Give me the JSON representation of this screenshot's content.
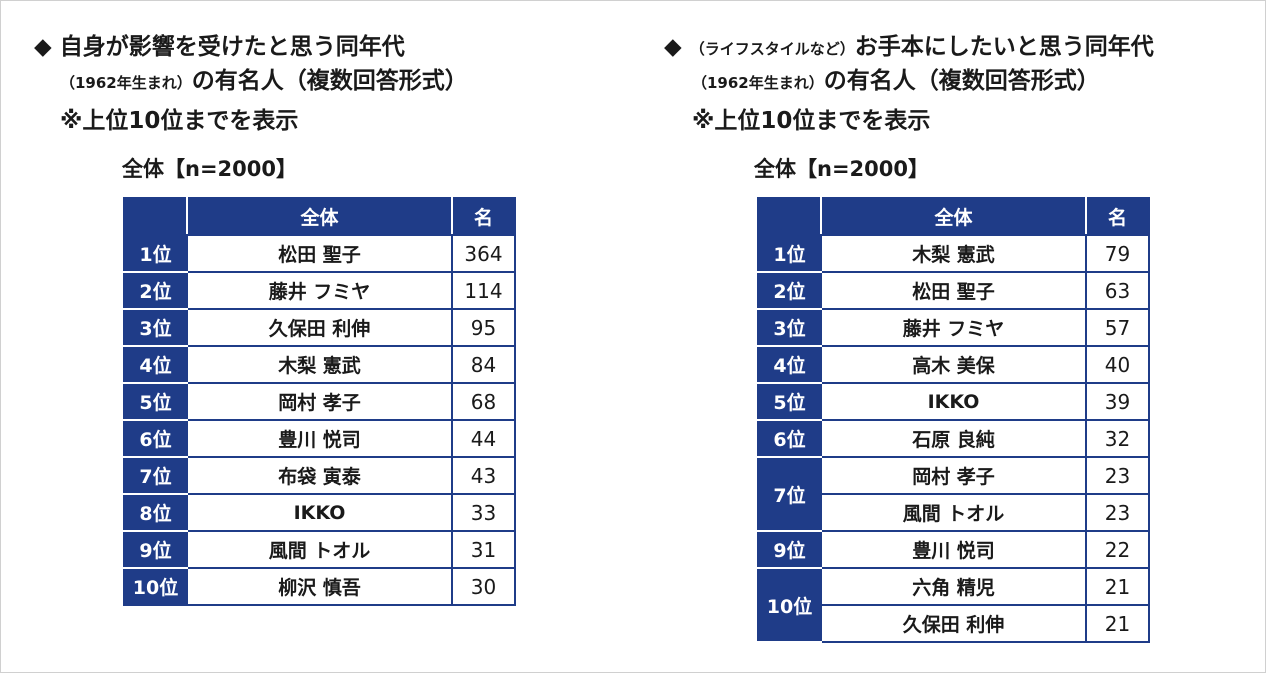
{
  "left": {
    "title_line1": "◆ 自身が影響を受けたと思う同年代",
    "title_line2_small": "（1962年生まれ）",
    "title_line2_rest": "の有名人（複数回答形式）",
    "note": "※上位10位までを表示",
    "total_label": "全体【n=2000】",
    "header": {
      "rank": "",
      "name": "全体",
      "count": "名"
    },
    "rows": [
      {
        "rank": "1位",
        "name": "松田 聖子",
        "count": "364"
      },
      {
        "rank": "2位",
        "name": "藤井 フミヤ",
        "count": "114"
      },
      {
        "rank": "3位",
        "name": "久保田 利伸",
        "count": "95"
      },
      {
        "rank": "4位",
        "name": "木梨 憲武",
        "count": "84"
      },
      {
        "rank": "5位",
        "name": "岡村 孝子",
        "count": "68"
      },
      {
        "rank": "6位",
        "name": "豊川 悦司",
        "count": "44"
      },
      {
        "rank": "7位",
        "name": "布袋 寅泰",
        "count": "43"
      },
      {
        "rank": "8位",
        "name": "IKKO",
        "count": "33"
      },
      {
        "rank": "9位",
        "name": "風間 トオル",
        "count": "31"
      },
      {
        "rank": "10位",
        "name": "柳沢 慎吾",
        "count": "30"
      }
    ]
  },
  "right": {
    "title_line1_mark": "◆ ",
    "title_line1_small": "（ライフスタイルなど）",
    "title_line1_rest": "お手本にしたいと思う同年代",
    "title_line2_small": "（1962年生まれ）",
    "title_line2_rest": "の有名人（複数回答形式）",
    "note": "※上位10位までを表示",
    "total_label": "全体【n=2000】",
    "header": {
      "rank": "",
      "name": "全体",
      "count": "名"
    },
    "rows": [
      {
        "rank": "1位",
        "name": "木梨 憲武",
        "count": "79"
      },
      {
        "rank": "2位",
        "name": "松田 聖子",
        "count": "63"
      },
      {
        "rank": "3位",
        "name": "藤井 フミヤ",
        "count": "57"
      },
      {
        "rank": "4位",
        "name": "高木 美保",
        "count": "40"
      },
      {
        "rank": "5位",
        "name": "IKKO",
        "count": "39"
      },
      {
        "rank": "6位",
        "name": "石原 良純",
        "count": "32"
      },
      {
        "rank": "7位",
        "name": "岡村 孝子",
        "count": "23"
      },
      {
        "rank": "",
        "name": "風間 トオル",
        "count": "23"
      },
      {
        "rank": "9位",
        "name": "豊川 悦司",
        "count": "22"
      },
      {
        "rank": "10位",
        "name": "六角 精児",
        "count": "21"
      },
      {
        "rank": "",
        "name": "久保田 利伸",
        "count": "21"
      }
    ]
  },
  "colors": {
    "header_bg": "#1f3c88",
    "header_text": "#ffffff",
    "border": "#1f3c88"
  }
}
